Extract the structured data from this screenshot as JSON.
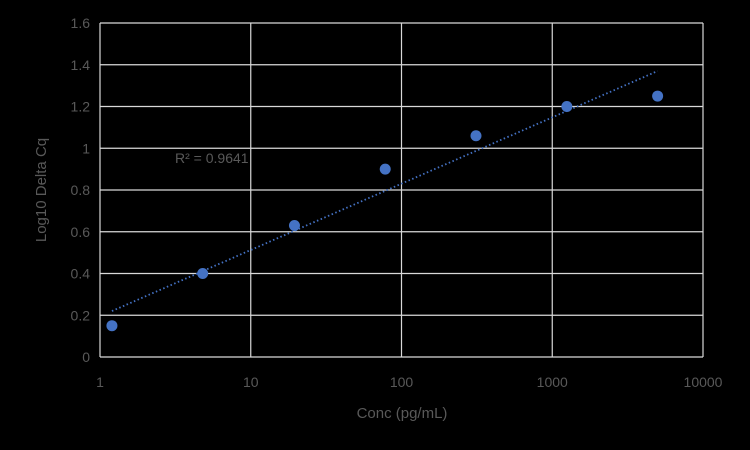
{
  "chart_data": {
    "type": "scatter",
    "x_scale": "log",
    "xlabel": "Conc (pg/mL)",
    "ylabel": "Log10 Delta Cq",
    "xlim": [
      1,
      10000
    ],
    "ylim": [
      0,
      1.6
    ],
    "x_ticks": [
      "1",
      "10",
      "100",
      "1000",
      "10000"
    ],
    "y_ticks": [
      "0",
      "0.2",
      "0.4",
      "0.6",
      "0.8",
      "1",
      "1.2",
      "1.4",
      "1.6"
    ],
    "grid": true,
    "series": [
      {
        "points": [
          {
            "x": 1.2,
            "y": 0.15
          },
          {
            "x": 4.8,
            "y": 0.4
          },
          {
            "x": 19.5,
            "y": 0.63
          },
          {
            "x": 78,
            "y": 0.9
          },
          {
            "x": 312,
            "y": 1.06
          },
          {
            "x": 1250,
            "y": 1.2
          },
          {
            "x": 5000,
            "y": 1.25
          }
        ],
        "color": "#4472C4"
      }
    ],
    "trendline": {
      "type": "logarithmic",
      "x_start": 1.2,
      "x_end": 5000,
      "y_start": 0.22,
      "y_end": 1.37,
      "color": "#4472C4",
      "style": "dotted"
    },
    "annotations": [
      {
        "text": "R² = 0.9641"
      }
    ]
  }
}
